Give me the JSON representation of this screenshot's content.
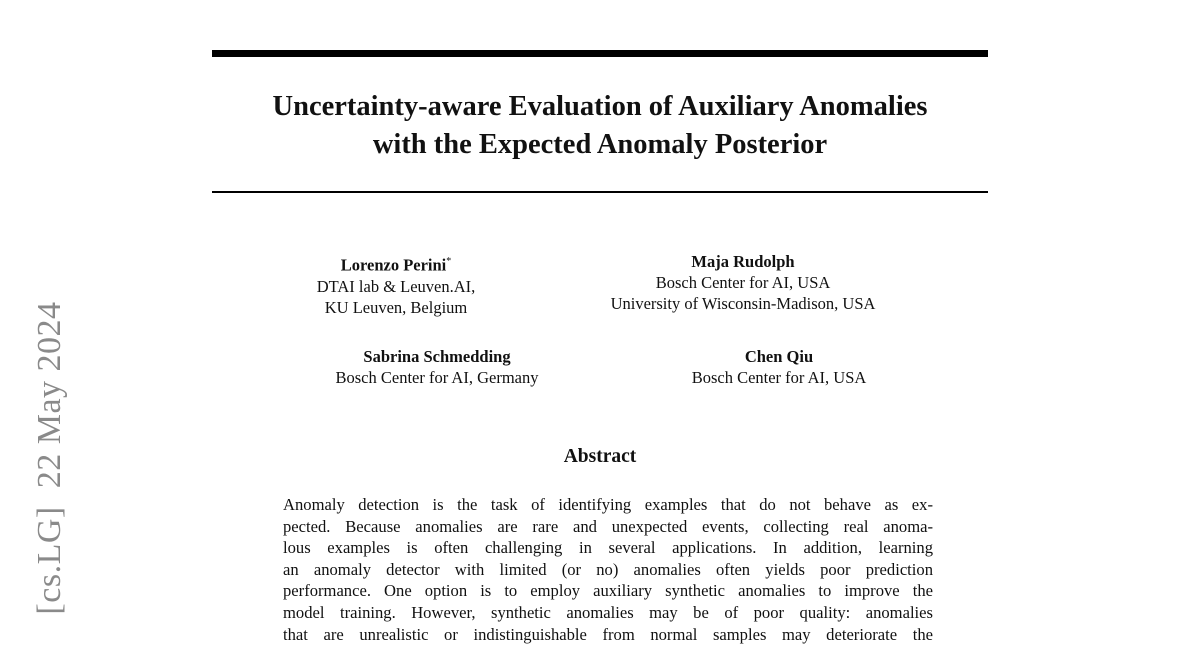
{
  "paper": {
    "title_lines": [
      "Uncertainty-aware Evaluation of Auxiliary Anomalies",
      "with the Expected Anomaly Posterior"
    ],
    "authors": [
      {
        "name": "Lorenzo Perini",
        "mark": "*",
        "affiliation": [
          "DTAI lab & Leuven.AI,",
          "KU Leuven, Belgium"
        ]
      },
      {
        "name": "Maja Rudolph",
        "affiliation": [
          "Bosch Center for AI, USA",
          "University of Wisconsin-Madison, USA"
        ]
      },
      {
        "name": "Sabrina Schmedding",
        "affiliation": [
          "Bosch Center for AI, Germany"
        ]
      },
      {
        "name": "Chen Qiu",
        "affiliation": [
          "Bosch Center for AI, USA"
        ]
      }
    ],
    "abstract_heading": "Abstract",
    "abstract_lines": [
      "Anomaly detection is the task of identifying examples that do not behave as ex-",
      "pected. Because anomalies are rare and unexpected events, collecting real anoma-",
      "lous examples is often challenging in several applications. In addition, learning",
      "an anomaly detector with limited (or no) anomalies often yields poor prediction",
      "performance. One option is to employ auxiliary synthetic anomalies to improve the",
      "model training. However, synthetic anomalies may be of poor quality: anomalies",
      "that are unrealistic or indistinguishable from normal samples may deteriorate the"
    ]
  },
  "arxiv_stamp": {
    "category": "[cs.LG]",
    "date": "22 May 2024"
  }
}
